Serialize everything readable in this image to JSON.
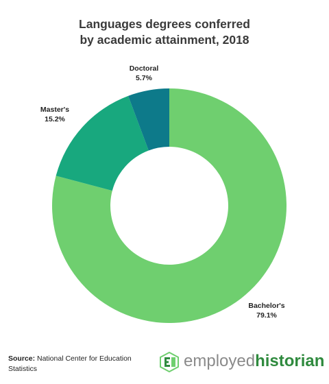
{
  "title_line1": "Languages degrees conferred",
  "title_line2": "by academic attainment, 2018",
  "chart_data": {
    "type": "pie",
    "variant": "donut",
    "categories": [
      "Bachelor's",
      "Master's",
      "Doctoral"
    ],
    "values": [
      79.1,
      15.2,
      5.7
    ],
    "value_labels": [
      "79.1%",
      "15.2%",
      "5.7%"
    ],
    "colors": [
      "#6fcf6f",
      "#18a87e",
      "#0d7a8a"
    ],
    "start": "top",
    "direction": "clockwise"
  },
  "source": {
    "label": "Source:",
    "text": " National Center for Education Statistics"
  },
  "logo": {
    "part1": "employed",
    "part2": "historian",
    "icon": "eh-monogram-icon"
  }
}
